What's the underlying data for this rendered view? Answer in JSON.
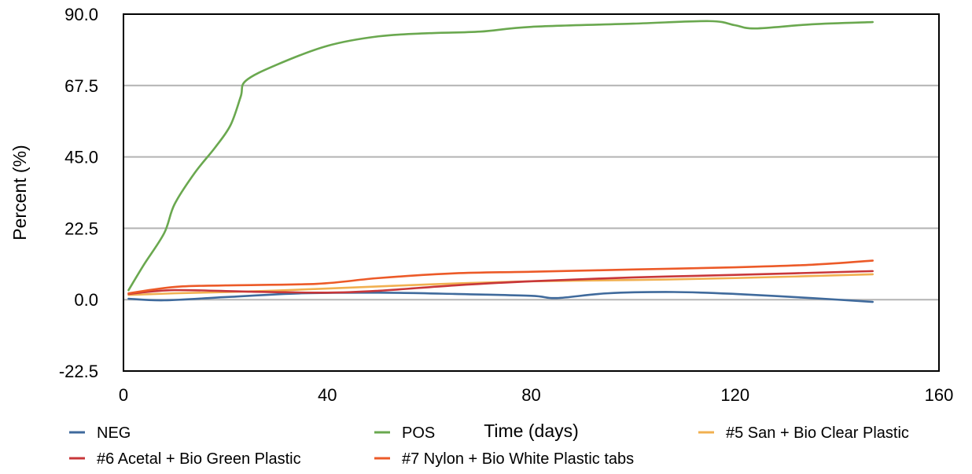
{
  "chart_data": {
    "type": "line",
    "title": "",
    "xlabel": "Time (days)",
    "ylabel": "Percent (%)",
    "xlim": [
      0,
      160
    ],
    "ylim": [
      -22.5,
      90
    ],
    "x_ticks": [
      0,
      40,
      80,
      120,
      160
    ],
    "x_tick_labels": [
      "0",
      "40",
      "80",
      "120",
      "160"
    ],
    "y_ticks": [
      -22.5,
      0,
      22.5,
      45,
      67.5,
      90
    ],
    "y_tick_labels": [
      "-22.5",
      "0.0",
      "22.5",
      "45.0",
      "67.5",
      "90.0"
    ],
    "grid": "horizontal",
    "legend_position": "bottom",
    "series": [
      {
        "name": "NEG",
        "color": "#3f6a9c",
        "points": [
          [
            1,
            0.3
          ],
          [
            8,
            -0.2
          ],
          [
            20,
            0.8
          ],
          [
            35,
            2.0
          ],
          [
            50,
            2.2
          ],
          [
            65,
            1.8
          ],
          [
            80,
            1.2
          ],
          [
            85,
            0.5
          ],
          [
            95,
            2.0
          ],
          [
            108,
            2.4
          ],
          [
            120,
            1.8
          ],
          [
            135,
            0.5
          ],
          [
            147,
            -0.7
          ]
        ]
      },
      {
        "name": "POS",
        "color": "#6aa84f",
        "points": [
          [
            1,
            3
          ],
          [
            4,
            11
          ],
          [
            8,
            21
          ],
          [
            10,
            30
          ],
          [
            14,
            40
          ],
          [
            18,
            48
          ],
          [
            21,
            55
          ],
          [
            23,
            64
          ],
          [
            24,
            69
          ],
          [
            30,
            74
          ],
          [
            40,
            80
          ],
          [
            50,
            83
          ],
          [
            60,
            84
          ],
          [
            70,
            84.5
          ],
          [
            80,
            86
          ],
          [
            100,
            87
          ],
          [
            115,
            87.8
          ],
          [
            120,
            86.5
          ],
          [
            124,
            85.5
          ],
          [
            135,
            86.8
          ],
          [
            147,
            87.5
          ]
        ]
      },
      {
        "name": "#5 San + Bio Clear Plastic",
        "color": "#f1b050",
        "points": [
          [
            1,
            1.5
          ],
          [
            10,
            2.0
          ],
          [
            25,
            2.6
          ],
          [
            40,
            3.5
          ],
          [
            60,
            4.8
          ],
          [
            80,
            5.8
          ],
          [
            100,
            6.2
          ],
          [
            120,
            6.8
          ],
          [
            147,
            8.0
          ]
        ]
      },
      {
        "name": "#6 Acetal + Bio Green Plastic",
        "color": "#c8373a",
        "points": [
          [
            1,
            1.8
          ],
          [
            10,
            3.0
          ],
          [
            25,
            2.5
          ],
          [
            40,
            2.2
          ],
          [
            50,
            2.8
          ],
          [
            65,
            4.5
          ],
          [
            80,
            5.8
          ],
          [
            100,
            7.0
          ],
          [
            120,
            7.8
          ],
          [
            147,
            9.0
          ]
        ]
      },
      {
        "name": "#7 Nylon + Bio White Plastic tabs",
        "color": "#ec5a28",
        "points": [
          [
            1,
            2.0
          ],
          [
            10,
            4.0
          ],
          [
            20,
            4.5
          ],
          [
            38,
            5.0
          ],
          [
            50,
            6.8
          ],
          [
            65,
            8.3
          ],
          [
            80,
            8.8
          ],
          [
            100,
            9.5
          ],
          [
            120,
            10.2
          ],
          [
            135,
            11.0
          ],
          [
            147,
            12.3
          ]
        ]
      }
    ]
  }
}
